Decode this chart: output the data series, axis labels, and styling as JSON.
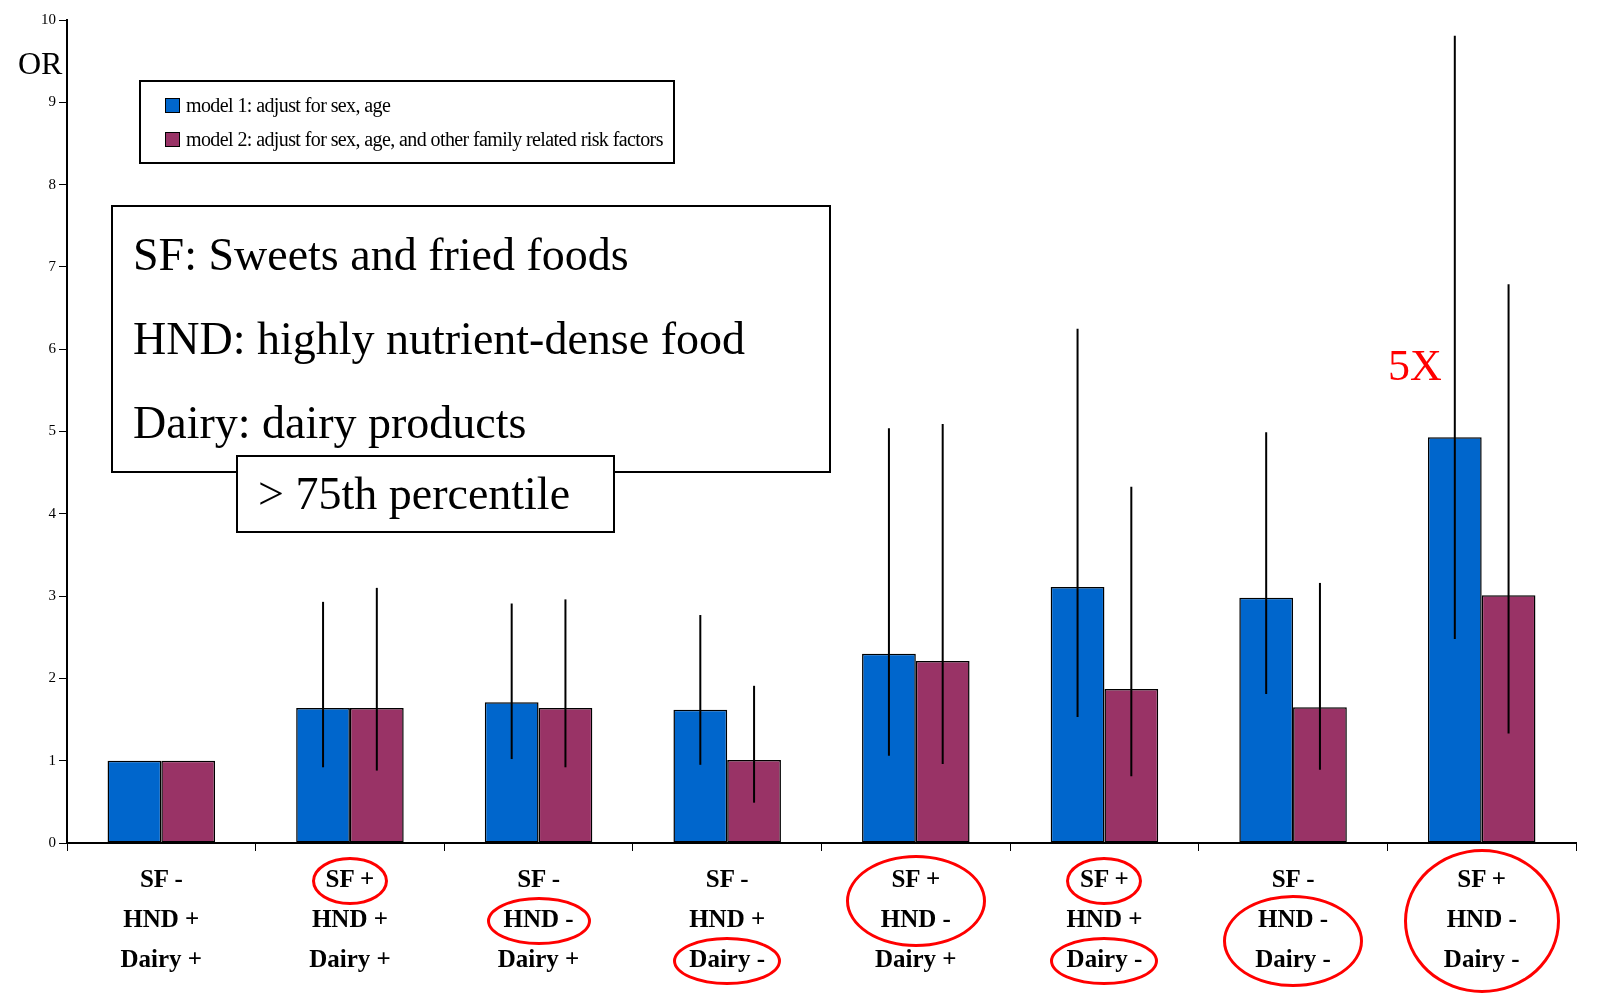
{
  "chart_data": {
    "type": "bar",
    "ylabel": "OR",
    "categories": [
      "SF -\nHND +\nDairy +",
      "SF +\nHND +\nDairy +",
      "SF -\nHND -\nDairy +",
      "SF -\nHND +\nDairy -",
      "SF +\nHND -\nDairy +",
      "SF +\nHND +\nDairy -",
      "SF -\nHND -\nDairy -",
      "SF +\nHND -\nDairy -"
    ],
    "series": [
      {
        "name": "model 1: adjust for sex, age",
        "color": "#0066cc",
        "values": [
          1.0,
          1.64,
          1.71,
          1.62,
          2.3,
          3.11,
          2.98,
          4.93
        ],
        "errors": [
          null,
          [
            0.92,
            2.93
          ],
          [
            1.02,
            2.91
          ],
          [
            0.95,
            2.77
          ],
          [
            1.06,
            5.04
          ],
          [
            1.53,
            6.25
          ],
          [
            1.81,
            4.99
          ],
          [
            2.48,
            9.81
          ]
        ]
      },
      {
        "name": "model 2: adjust for sex, age, and other family related risk factors",
        "color": "#993366",
        "values": [
          1.0,
          1.64,
          1.64,
          1.01,
          2.21,
          1.87,
          1.65,
          3.01
        ],
        "errors": [
          null,
          [
            0.88,
            3.1
          ],
          [
            0.92,
            2.96
          ],
          [
            0.49,
            1.91
          ],
          [
            0.96,
            5.09
          ],
          [
            0.81,
            4.33
          ],
          [
            0.89,
            3.16
          ],
          [
            1.33,
            6.79
          ]
        ]
      }
    ],
    "ylim": [
      0,
      10
    ],
    "yticks": [
      0,
      1,
      2,
      3,
      4,
      5,
      6,
      7,
      8,
      9,
      10
    ],
    "grid": false,
    "legend": "top left",
    "annotations": [
      "SF: Sweets and fried foods",
      "HND: highly nutrient-dense food",
      "Dairy: dairy products",
      "> 75th percentile",
      "5X"
    ]
  }
}
